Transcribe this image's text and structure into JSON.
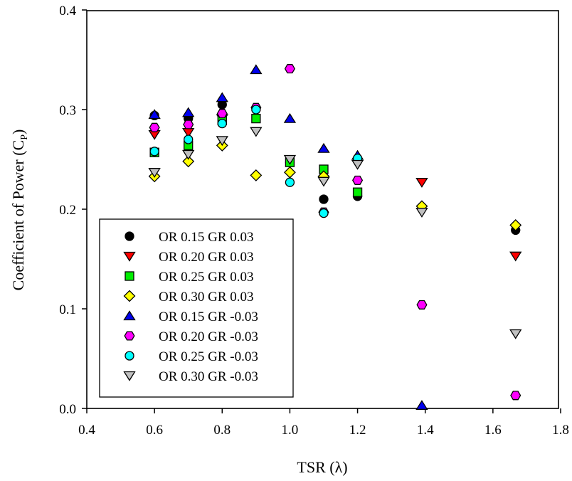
{
  "chart_data": {
    "type": "scatter",
    "title": "",
    "xlabel": "TSR (λ)",
    "ylabel_main": "Coefficient of Power (C",
    "ylabel_sub": "P",
    "ylabel_close": ")",
    "xlim": [
      0.4,
      1.8
    ],
    "ylim": [
      0.0,
      0.4
    ],
    "xticks": [
      0.4,
      0.6,
      0.8,
      1.0,
      1.2,
      1.4,
      1.6,
      1.8
    ],
    "xtick_labels": [
      "0.4",
      "0.6",
      "0.8",
      "1.0",
      "1.2",
      "1.4",
      "1.6",
      "1.8"
    ],
    "yticks": [
      0.0,
      0.1,
      0.2,
      0.3,
      0.4
    ],
    "ytick_labels": [
      "0.0",
      "0.1",
      "0.2",
      "0.3",
      "0.4"
    ],
    "grid": false,
    "legend_position": "bottom-left",
    "series": [
      {
        "name": "OR 0.15 GR 0.03",
        "marker": "circle",
        "color": "#000000",
        "x": [
          0.6,
          0.7,
          0.8,
          1.0,
          1.1,
          1.2,
          1.667
        ],
        "y": [
          0.294,
          0.291,
          0.305,
          0.247,
          0.21,
          0.213,
          0.179
        ]
      },
      {
        "name": "OR 0.20 GR 0.03",
        "marker": "triangle-down",
        "color": "#ff0000",
        "x": [
          0.6,
          0.7,
          0.8,
          1.39,
          1.667
        ],
        "y": [
          0.275,
          0.277,
          0.291,
          0.227,
          0.153
        ]
      },
      {
        "name": "OR 0.25 GR 0.03",
        "marker": "square",
        "color": "#00ee00",
        "x": [
          0.6,
          0.7,
          0.8,
          0.9,
          1.0,
          1.1,
          1.2
        ],
        "y": [
          0.257,
          0.264,
          0.289,
          0.291,
          0.247,
          0.24,
          0.217
        ]
      },
      {
        "name": "OR 0.30 GR 0.03",
        "marker": "diamond",
        "color": "#ffff00",
        "x": [
          0.6,
          0.7,
          0.8,
          0.9,
          1.0,
          1.1,
          1.39,
          1.667
        ],
        "y": [
          0.233,
          0.248,
          0.264,
          0.234,
          0.237,
          0.233,
          0.203,
          0.184
        ]
      },
      {
        "name": "OR 0.15 GR -0.03",
        "marker": "triangle-up",
        "color": "#0000ee",
        "x": [
          0.6,
          0.7,
          0.8,
          0.9,
          1.0,
          1.1,
          1.2,
          1.39
        ],
        "y": [
          0.295,
          0.297,
          0.312,
          0.34,
          0.291,
          0.261,
          0.254,
          0.003
        ]
      },
      {
        "name": "OR 0.20 GR -0.03",
        "marker": "hexagon",
        "color": "#ff00ff",
        "x": [
          0.6,
          0.7,
          0.8,
          0.9,
          1.0,
          1.1,
          1.2,
          1.39,
          1.667
        ],
        "y": [
          0.282,
          0.285,
          0.296,
          0.302,
          0.341,
          0.197,
          0.229,
          0.104,
          0.013
        ]
      },
      {
        "name": "OR 0.25 GR -0.03",
        "marker": "circle",
        "color": "#00ffff",
        "x": [
          0.6,
          0.7,
          0.8,
          0.9,
          1.0,
          1.1,
          1.2
        ],
        "y": [
          0.258,
          0.27,
          0.286,
          0.3,
          0.227,
          0.196,
          0.251
        ]
      },
      {
        "name": "OR 0.30 GR -0.03",
        "marker": "triangle-down",
        "color": "#c0c0c0",
        "x": [
          0.6,
          0.7,
          0.8,
          0.9,
          1.0,
          1.1,
          1.2,
          1.39,
          1.667
        ],
        "y": [
          0.237,
          0.255,
          0.269,
          0.278,
          0.25,
          0.228,
          0.245,
          0.197,
          0.075
        ]
      }
    ]
  }
}
